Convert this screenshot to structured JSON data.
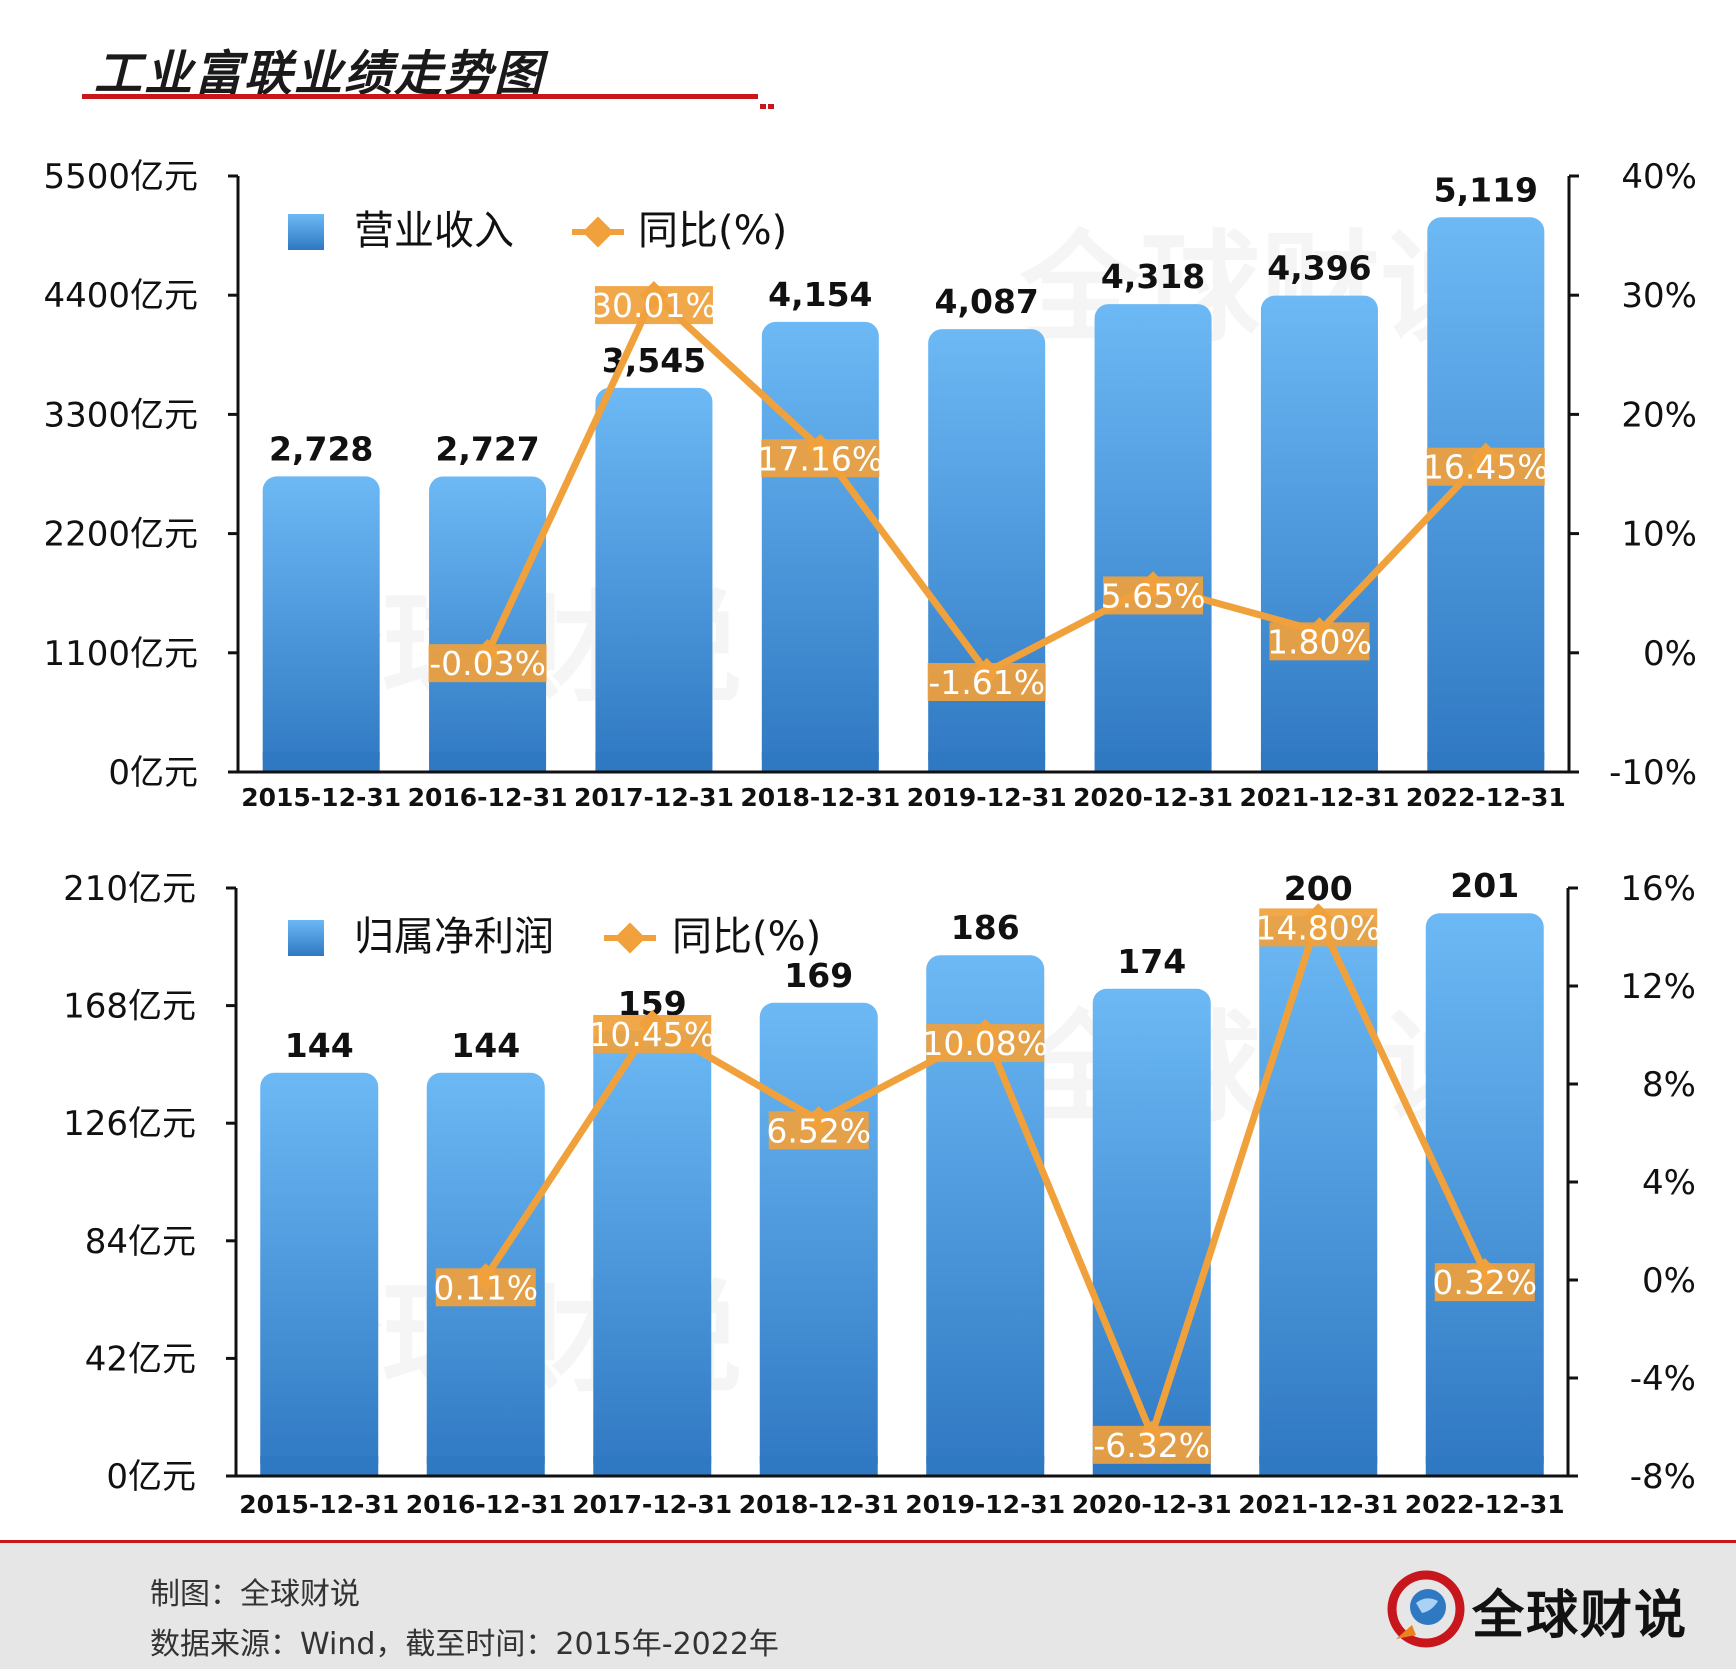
{
  "page": {
    "title": "工业富联业绩走势图",
    "watermark": "全球财说"
  },
  "footer": {
    "maker": "制图：全球财说",
    "source": "数据来源：Wind，截至时间：2015年-2022年",
    "brand": "全球财说"
  },
  "colors": {
    "bar_top": "#6cb9f5",
    "bar_bottom": "#2f78c2",
    "line": "#f0a13c",
    "label_bg": "#f0a13c",
    "accent": "#c8161d"
  },
  "chart_data": [
    {
      "type": "bar",
      "categories": [
        "2015-12-31",
        "2016-12-31",
        "2017-12-31",
        "2018-12-31",
        "2019-12-31",
        "2020-12-31",
        "2021-12-31",
        "2022-12-31"
      ],
      "series": [
        {
          "name": "营业收入",
          "type": "bar",
          "axis": "left",
          "values": [
            2728,
            2727,
            3545,
            4154,
            4087,
            4318,
            4396,
            5119
          ],
          "labels": [
            "2,728",
            "2,727",
            "3,545",
            "4,154",
            "4,087",
            "4,318",
            "4,396",
            "5,119"
          ]
        },
        {
          "name": "同比(%)",
          "type": "line",
          "axis": "right",
          "values": [
            null,
            -0.03,
            30.01,
            17.16,
            -1.61,
            5.65,
            1.8,
            16.45
          ],
          "labels": [
            "",
            "-0.03%",
            "30.01%",
            "17.16%",
            "-1.61%",
            "5.65%",
            "1.80%",
            "16.45%"
          ]
        }
      ],
      "y_left": {
        "ylim": [
          0,
          5500
        ],
        "ticks": [
          0,
          1100,
          2200,
          3300,
          4400,
          5500
        ],
        "tick_labels": [
          "0亿元",
          "1100亿元",
          "2200亿元",
          "3300亿元",
          "4400亿元",
          "5500亿元"
        ]
      },
      "y_right": {
        "ylim": [
          -10,
          40
        ],
        "ticks": [
          -10,
          0,
          10,
          20,
          30,
          40
        ],
        "tick_labels": [
          "-10%",
          "0%",
          "10%",
          "20%",
          "30%",
          "40%"
        ]
      },
      "grid": false,
      "legend": "top-left"
    },
    {
      "type": "bar",
      "categories": [
        "2015-12-31",
        "2016-12-31",
        "2017-12-31",
        "2018-12-31",
        "2019-12-31",
        "2020-12-31",
        "2021-12-31",
        "2022-12-31"
      ],
      "series": [
        {
          "name": "归属净利润",
          "type": "bar",
          "axis": "left",
          "values": [
            144,
            144,
            159,
            169,
            186,
            174,
            200,
            201
          ],
          "labels": [
            "144",
            "144",
            "159",
            "169",
            "186",
            "174",
            "200",
            "201"
          ]
        },
        {
          "name": "同比(%)",
          "type": "line",
          "axis": "right",
          "values": [
            null,
            0.11,
            10.45,
            6.52,
            10.08,
            -6.32,
            14.8,
            0.32
          ],
          "labels": [
            "",
            "0.11%",
            "10.45%",
            "6.52%",
            "10.08%",
            "-6.32%",
            "14.80%",
            "0.32%"
          ]
        }
      ],
      "y_left": {
        "ylim": [
          0,
          210
        ],
        "ticks": [
          0,
          42,
          84,
          126,
          168,
          210
        ],
        "tick_labels": [
          "0亿元",
          "42亿元",
          "84亿元",
          "126亿元",
          "168亿元",
          "210亿元"
        ]
      },
      "y_right": {
        "ylim": [
          -8,
          16
        ],
        "ticks": [
          -8,
          -4,
          0,
          4,
          8,
          12,
          16
        ],
        "tick_labels": [
          "-8%",
          "-4%",
          "0%",
          "4%",
          "8%",
          "12%",
          "16%"
        ]
      },
      "grid": false,
      "legend": "top-left"
    }
  ]
}
